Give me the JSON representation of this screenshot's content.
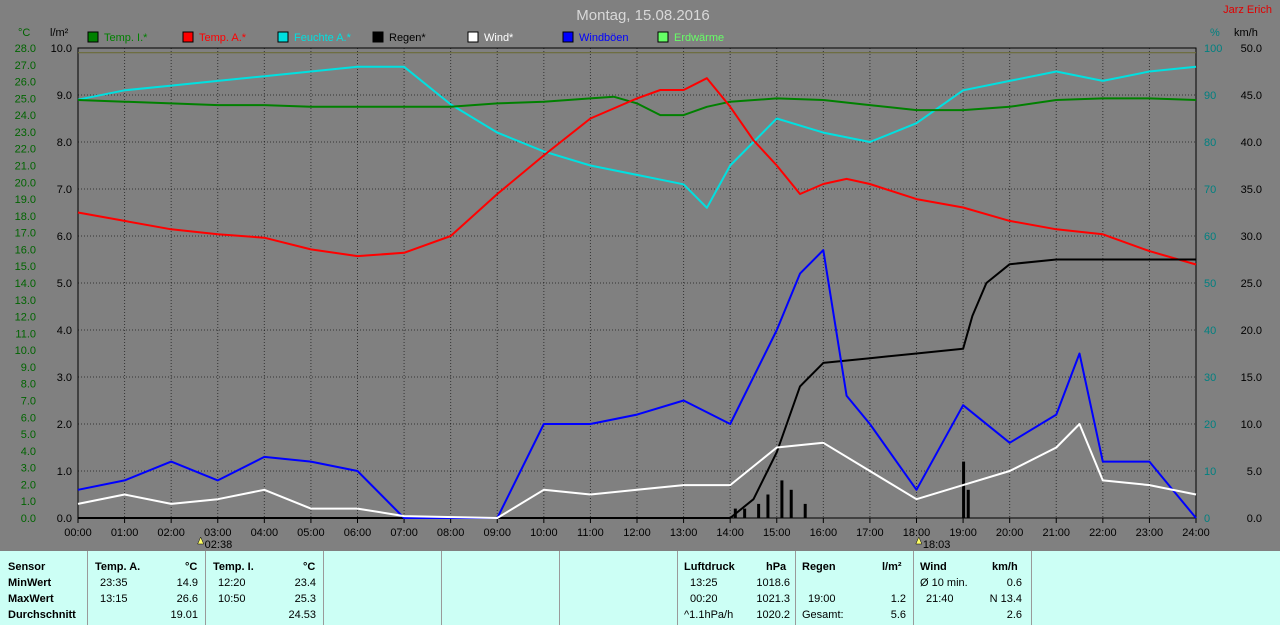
{
  "title": "Montag, 15.08.2016",
  "author": "Jarz Erich",
  "axes": {
    "left_unit": "°C",
    "rain_unit": "l/m²",
    "right_unit1": "%",
    "right_unit2": "km/h",
    "temp_ticks": [
      "28.0",
      "27.0",
      "26.0",
      "25.0",
      "24.0",
      "23.0",
      "22.0",
      "21.0",
      "20.0",
      "19.0",
      "18.0",
      "17.0",
      "16.0",
      "15.0",
      "14.0",
      "13.0",
      "12.0",
      "11.0",
      "10.0",
      "9.0",
      "8.0",
      "7.0",
      "6.0",
      "5.0",
      "4.0",
      "3.0",
      "2.0",
      "1.0",
      "0.0"
    ],
    "rain_ticks": [
      "10.0",
      "9.0",
      "8.0",
      "7.0",
      "6.0",
      "5.0",
      "4.0",
      "3.0",
      "2.0",
      "1.0",
      "0.0"
    ],
    "hum_ticks": [
      "100",
      "90",
      "80",
      "70",
      "60",
      "50",
      "40",
      "30",
      "20",
      "10",
      "0"
    ],
    "wind_ticks": [
      "50.0",
      "45.0",
      "40.0",
      "35.0",
      "30.0",
      "25.0",
      "20.0",
      "15.0",
      "10.0",
      "5.0",
      "0.0"
    ],
    "time_ticks": [
      "00:00",
      "01:00",
      "02:00",
      "03:00",
      "04:00",
      "05:00",
      "06:00",
      "07:00",
      "08:00",
      "09:00",
      "10:00",
      "11:00",
      "12:00",
      "13:00",
      "14:00",
      "15:00",
      "16:00",
      "17:00",
      "18:00",
      "19:00",
      "20:00",
      "21:00",
      "22:00",
      "23:00",
      "24:00"
    ],
    "sunrise": "02:38",
    "sunset": "18:03"
  },
  "legend": [
    {
      "label": "Temp. I.*",
      "color": "#008000"
    },
    {
      "label": "Temp. A.*",
      "color": "#ff0000"
    },
    {
      "label": "Feuchte A.*",
      "color": "#00e0e0"
    },
    {
      "label": "Regen*",
      "color": "#000000"
    },
    {
      "label": "Wind*",
      "color": "#ffffff"
    },
    {
      "label": "Windböen",
      "color": "#0000ff"
    },
    {
      "label": "Erdwärme",
      "color": "#66ff66"
    }
  ],
  "chart_data": {
    "type": "line",
    "x_unit": "hours",
    "series": [
      {
        "name": "Temp. I.*",
        "axis": "temp_c",
        "color": "#008000",
        "points": [
          [
            0,
            24.9
          ],
          [
            1,
            24.8
          ],
          [
            2,
            24.7
          ],
          [
            3,
            24.6
          ],
          [
            4,
            24.6
          ],
          [
            5,
            24.5
          ],
          [
            6,
            24.5
          ],
          [
            7,
            24.5
          ],
          [
            8,
            24.5
          ],
          [
            9,
            24.7
          ],
          [
            10,
            24.8
          ],
          [
            11,
            25.0
          ],
          [
            11.5,
            25.1
          ],
          [
            12,
            24.7
          ],
          [
            12.5,
            24.0
          ],
          [
            13,
            24.0
          ],
          [
            13.5,
            24.5
          ],
          [
            14,
            24.8
          ],
          [
            15,
            25.0
          ],
          [
            16,
            24.9
          ],
          [
            17,
            24.6
          ],
          [
            18,
            24.3
          ],
          [
            19,
            24.3
          ],
          [
            20,
            24.5
          ],
          [
            21,
            24.9
          ],
          [
            22,
            25.0
          ],
          [
            23,
            25.0
          ],
          [
            24,
            24.9
          ]
        ]
      },
      {
        "name": "Temp. A.*",
        "axis": "temp_c",
        "color": "#ff0000",
        "points": [
          [
            0,
            18.2
          ],
          [
            1,
            17.7
          ],
          [
            2,
            17.2
          ],
          [
            3,
            16.9
          ],
          [
            4,
            16.7
          ],
          [
            5,
            16.0
          ],
          [
            6,
            15.6
          ],
          [
            7,
            15.8
          ],
          [
            8,
            16.8
          ],
          [
            9,
            19.3
          ],
          [
            10,
            21.6
          ],
          [
            11,
            23.8
          ],
          [
            12,
            25.0
          ],
          [
            12.5,
            25.5
          ],
          [
            13,
            25.5
          ],
          [
            13.5,
            26.2
          ],
          [
            14,
            24.5
          ],
          [
            14.5,
            22.5
          ],
          [
            15,
            21.0
          ],
          [
            15.5,
            19.3
          ],
          [
            16,
            19.9
          ],
          [
            16.5,
            20.2
          ],
          [
            17,
            19.9
          ],
          [
            18,
            19.0
          ],
          [
            19,
            18.5
          ],
          [
            20,
            17.7
          ],
          [
            21,
            17.2
          ],
          [
            22,
            16.9
          ],
          [
            23,
            15.9
          ],
          [
            24,
            15.1
          ]
        ]
      },
      {
        "name": "Feuchte A.*",
        "axis": "humidity_pct",
        "color": "#00e0e0",
        "points": [
          [
            0,
            89
          ],
          [
            1,
            91
          ],
          [
            2,
            92
          ],
          [
            3,
            93
          ],
          [
            4,
            94
          ],
          [
            5,
            95
          ],
          [
            6,
            96
          ],
          [
            7,
            96
          ],
          [
            8,
            88
          ],
          [
            9,
            82
          ],
          [
            10,
            78
          ],
          [
            11,
            75
          ],
          [
            12,
            73
          ],
          [
            13,
            71
          ],
          [
            13.5,
            66
          ],
          [
            14,
            75
          ],
          [
            15,
            85
          ],
          [
            16,
            82
          ],
          [
            17,
            80
          ],
          [
            18,
            84
          ],
          [
            19,
            91
          ],
          [
            20,
            93
          ],
          [
            21,
            95
          ],
          [
            22,
            93
          ],
          [
            23,
            95
          ],
          [
            24,
            96
          ]
        ]
      },
      {
        "name": "Regen*",
        "axis": "rain_lm2",
        "color": "#000000",
        "points": [
          [
            0,
            0
          ],
          [
            14,
            0
          ],
          [
            14.5,
            0.4
          ],
          [
            15,
            1.4
          ],
          [
            15.5,
            2.8
          ],
          [
            16,
            3.3
          ],
          [
            17,
            3.4
          ],
          [
            18,
            3.5
          ],
          [
            19,
            3.6
          ],
          [
            19.2,
            4.3
          ],
          [
            19.5,
            5.0
          ],
          [
            20,
            5.4
          ],
          [
            21,
            5.5
          ],
          [
            22,
            5.5
          ],
          [
            23,
            5.5
          ],
          [
            24,
            5.5
          ]
        ]
      },
      {
        "name": "Wind*",
        "axis": "wind_kmh",
        "color": "#ffffff",
        "points": [
          [
            0,
            1.5
          ],
          [
            1,
            2.5
          ],
          [
            2,
            1.5
          ],
          [
            3,
            2
          ],
          [
            4,
            3
          ],
          [
            5,
            1
          ],
          [
            6,
            1
          ],
          [
            7,
            0.2
          ],
          [
            9,
            0
          ],
          [
            10,
            3
          ],
          [
            11,
            2.5
          ],
          [
            12,
            3
          ],
          [
            13,
            3.5
          ],
          [
            14,
            3.5
          ],
          [
            15,
            7.5
          ],
          [
            16,
            8
          ],
          [
            17,
            5
          ],
          [
            18,
            2
          ],
          [
            19,
            3.5
          ],
          [
            20,
            5
          ],
          [
            21,
            7.5
          ],
          [
            21.5,
            10
          ],
          [
            22,
            4
          ],
          [
            23,
            3.5
          ],
          [
            24,
            2.5
          ]
        ]
      },
      {
        "name": "Windböen",
        "axis": "wind_kmh",
        "color": "#0000ff",
        "points": [
          [
            0,
            3
          ],
          [
            1,
            4
          ],
          [
            2,
            6
          ],
          [
            3,
            4
          ],
          [
            4,
            6.5
          ],
          [
            5,
            6
          ],
          [
            6,
            5
          ],
          [
            7,
            0
          ],
          [
            9,
            0
          ],
          [
            10,
            10
          ],
          [
            11,
            10
          ],
          [
            12,
            11
          ],
          [
            13,
            12.5
          ],
          [
            14,
            10
          ],
          [
            15,
            20
          ],
          [
            15.5,
            26
          ],
          [
            16,
            28.5
          ],
          [
            16.5,
            13
          ],
          [
            17,
            10
          ],
          [
            18,
            3
          ],
          [
            19,
            12
          ],
          [
            20,
            8
          ],
          [
            21,
            11
          ],
          [
            21.5,
            17.5
          ],
          [
            22,
            6
          ],
          [
            23,
            6
          ],
          [
            24,
            0
          ]
        ]
      },
      {
        "name": "Erdwärme",
        "axis": "humidity_pct",
        "color": "#6b6b3a",
        "points": [
          [
            0,
            99
          ],
          [
            6,
            99
          ],
          [
            12,
            99
          ],
          [
            18,
            99
          ],
          [
            24,
            99
          ]
        ]
      }
    ],
    "rain_bars": [
      [
        14.1,
        0.2
      ],
      [
        14.3,
        0.2
      ],
      [
        14.6,
        0.3
      ],
      [
        14.8,
        0.5
      ],
      [
        15.1,
        0.8
      ],
      [
        15.3,
        0.6
      ],
      [
        15.6,
        0.3
      ],
      [
        19.0,
        1.2
      ],
      [
        19.1,
        0.6
      ]
    ],
    "ranges": {
      "x": [
        0,
        24
      ],
      "temp_c": [
        0,
        28
      ],
      "rain_lm2": [
        0,
        10
      ],
      "humidity_pct": [
        0,
        100
      ],
      "wind_kmh": [
        0,
        50
      ]
    },
    "grid": true
  },
  "stats": {
    "sensor": {
      "label": "Sensor",
      "min": "MinWert",
      "max": "MaxWert",
      "avg": "Durchschnitt"
    },
    "temp_a": {
      "label": "Temp. A.",
      "unit": "°C",
      "min_time": "23:35",
      "min": "14.9",
      "max_time": "13:15",
      "max": "26.6",
      "avg": "19.01"
    },
    "temp_i": {
      "label": "Temp. I.",
      "unit": "°C",
      "min_time": "12:20",
      "min": "23.4",
      "max_time": "10:50",
      "max": "25.3",
      "avg": "24.53"
    },
    "pressure": {
      "label": "Luftdruck",
      "unit": "hPa",
      "min_time": "13:25",
      "min": "1018.6",
      "max_time": "00:20",
      "max": "1021.3",
      "trend": "^1.1hPa/h",
      "current": "1020.2"
    },
    "rain": {
      "label": "Regen",
      "unit": "l/m²",
      "max_time": "19:00",
      "max": "1.2",
      "total_label": "Gesamt:",
      "total": "5.6"
    },
    "wind": {
      "label": "Wind",
      "unit": "km/h",
      "avg_label": "Ø 10 min.",
      "avg": "0.6",
      "max_time": "21:40",
      "max": "N 13.4",
      "current": "2.6"
    }
  }
}
